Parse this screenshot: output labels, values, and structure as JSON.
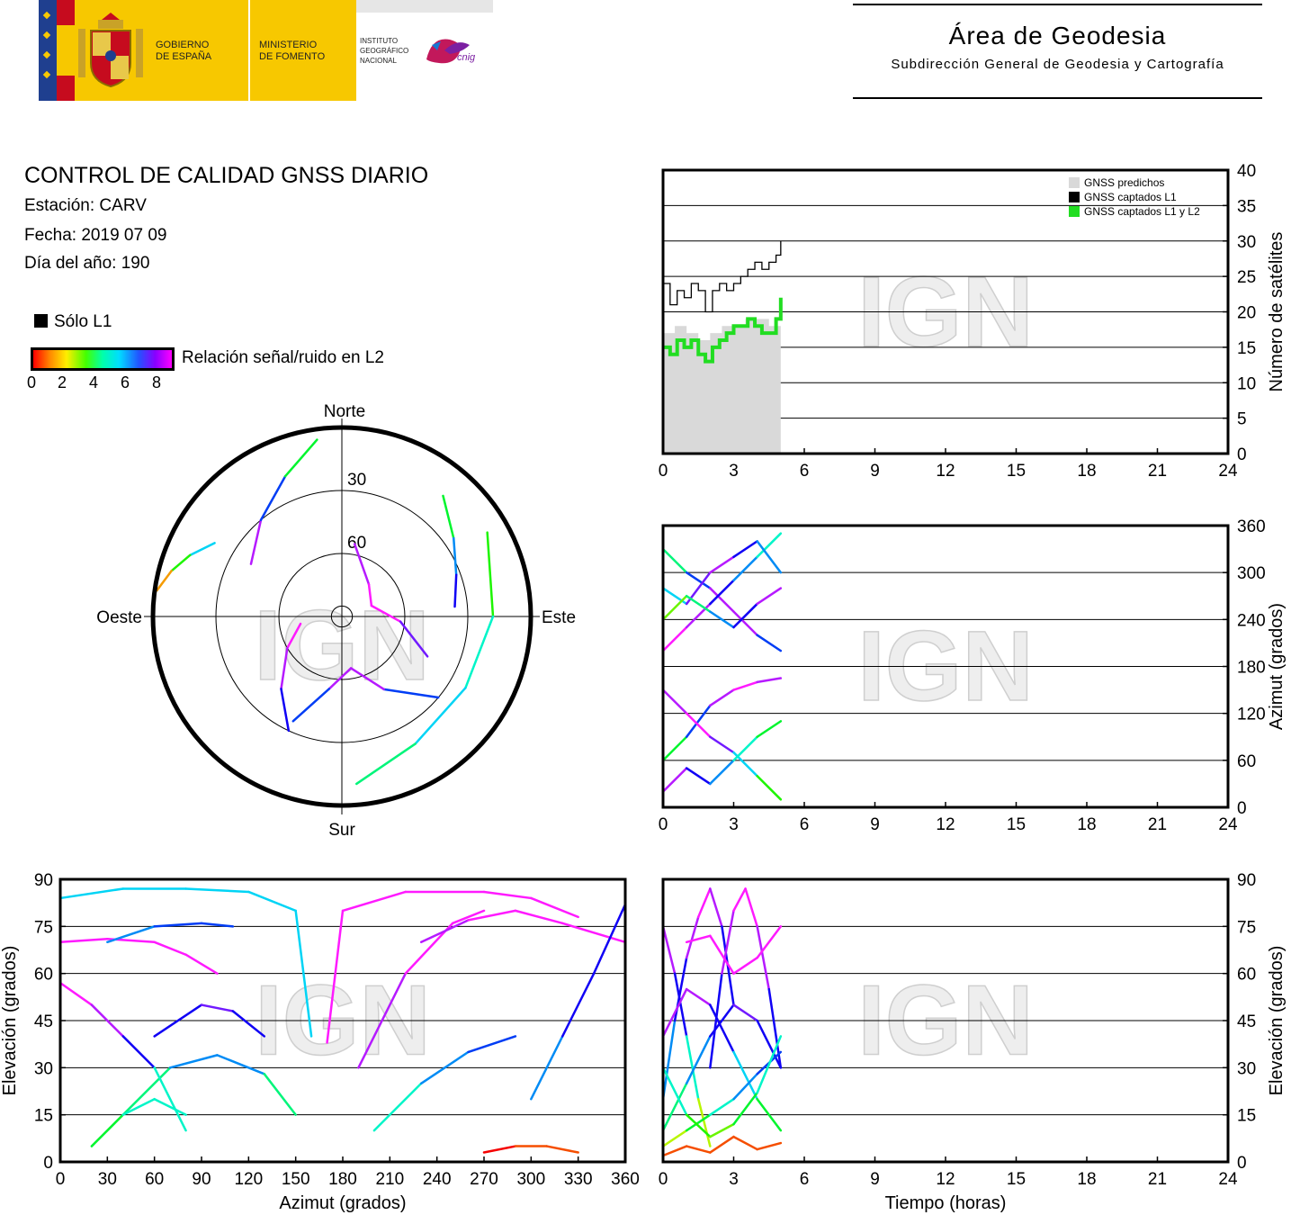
{
  "header": {
    "gov_line1": "GOBIERNO",
    "gov_line2": "DE ESPAÑA",
    "ministry_line1": "MINISTERIO",
    "ministry_line2": "DE FOMENTO",
    "ign_line1": "INSTITUTO",
    "ign_line2": "GEOGRÁFICO",
    "ign_line3": "NACIONAL",
    "cnig": "cnig",
    "area_title": "Área de Geodesia",
    "area_subtitle": "Subdirección General de Geodesia y Cartografía",
    "colors": {
      "spain_yellow": "#f7c800",
      "spain_red": "#c60b1e",
      "eu_blue": "#1f3f8f"
    }
  },
  "info": {
    "title": "CONTROL DE CALIDAD GNSS DIARIO",
    "station": "Estación: CARV",
    "date": "Fecha: 2019 07 09",
    "doy": "Día del año: 190"
  },
  "legend": {
    "l1_only": "Sólo L1",
    "snr_label": "Relación señal/ruido en L2",
    "snr_ticks": [
      "0",
      "2",
      "4",
      "6",
      "8"
    ]
  },
  "watermark": "IGN",
  "chart_data": [
    {
      "id": "skyplot",
      "type": "scatter",
      "projection": "polar",
      "directions": {
        "north": "Norte",
        "south": "Sur",
        "east": "Este",
        "west": "Oeste"
      },
      "ring_labels": [
        "30",
        "60"
      ],
      "rings_elevation": [
        0,
        30,
        60,
        85
      ],
      "color_scale": "snr_L2_0_to_8",
      "tracks": [
        {
          "az": [
            300,
            320,
            338,
            352
          ],
          "el": [
            40,
            30,
            18,
            5
          ],
          "snr": [
            8,
            7,
            5,
            2
          ]
        },
        {
          "az": [
            260,
            240,
            220,
            205
          ],
          "el": [
            70,
            60,
            45,
            30
          ],
          "snr": [
            8,
            8,
            7,
            6
          ]
        },
        {
          "az": [
            10,
            40,
            70,
            95,
            115
          ],
          "el": [
            55,
            70,
            75,
            62,
            45
          ],
          "snr": [
            7,
            8,
            8,
            8,
            6
          ]
        },
        {
          "az": [
            130,
            150,
            170,
            190,
            205
          ],
          "el": [
            30,
            50,
            65,
            55,
            35
          ],
          "snr": [
            5,
            7,
            8,
            7,
            5
          ]
        },
        {
          "az": [
            40,
            55,
            70,
            85
          ],
          "el": [
            15,
            25,
            32,
            36
          ],
          "snr": [
            2,
            5,
            6,
            7
          ]
        },
        {
          "az": [
            300,
            292,
            285,
            278
          ],
          "el": [
            20,
            12,
            6,
            1
          ],
          "snr": [
            6,
            4,
            2,
            0
          ]
        },
        {
          "az": [
            60,
            90,
            120,
            150,
            175
          ],
          "el": [
            10,
            18,
            22,
            20,
            10
          ],
          "snr": [
            2,
            4,
            5,
            5,
            3
          ]
        }
      ]
    },
    {
      "id": "satellites-vs-time",
      "type": "area",
      "title": "",
      "xlabel": "",
      "ylabel": "Número de satélites",
      "xlim": [
        0,
        24
      ],
      "ylim": [
        0,
        40
      ],
      "xticks": [
        0,
        3,
        6,
        9,
        12,
        15,
        18,
        21,
        24
      ],
      "yticks": [
        0,
        5,
        10,
        15,
        20,
        25,
        30,
        35,
        40
      ],
      "grid": "horizontal",
      "legend_position": "top-right",
      "series": [
        {
          "name": "GNSS predichos",
          "color": "#d9d9d9",
          "x": [
            0,
            0.5,
            1,
            1.5,
            2,
            2.5,
            3,
            3.5,
            4,
            4.5,
            5
          ],
          "values": [
            17,
            18,
            17,
            16,
            17,
            18,
            18,
            19,
            19,
            18,
            22
          ]
        },
        {
          "name": "GNSS captados L1",
          "color": "#000000",
          "x": [
            0,
            0.3,
            0.6,
            0.9,
            1.2,
            1.5,
            1.8,
            2.1,
            2.4,
            2.7,
            3.0,
            3.3,
            3.6,
            3.9,
            4.2,
            4.5,
            4.8,
            5.0
          ],
          "values": [
            24,
            21,
            23,
            22,
            24,
            23,
            20,
            23,
            24,
            23,
            24,
            25,
            26,
            27,
            26,
            27,
            28,
            30
          ]
        },
        {
          "name": "GNSS captados L1 y L2",
          "color": "#22dd22",
          "x": [
            0,
            0.3,
            0.6,
            0.9,
            1.2,
            1.5,
            1.8,
            2.1,
            2.4,
            2.7,
            3.0,
            3.3,
            3.6,
            3.9,
            4.2,
            4.5,
            4.8,
            5.0
          ],
          "values": [
            15,
            14,
            16,
            15,
            16,
            14,
            13,
            15,
            16,
            17,
            18,
            18,
            19,
            18,
            17,
            17,
            19,
            22
          ]
        }
      ]
    },
    {
      "id": "azimuth-vs-time",
      "type": "scatter",
      "xlabel": "",
      "ylabel": "Azimut (grados)",
      "xlim": [
        0,
        24
      ],
      "ylim": [
        0,
        360
      ],
      "xticks": [
        0,
        3,
        6,
        9,
        12,
        15,
        18,
        21,
        24
      ],
      "yticks": [
        0,
        60,
        120,
        180,
        240,
        300,
        360
      ],
      "grid": "horizontal",
      "color_scale": "snr_L2_0_to_8",
      "tracks": [
        {
          "x": [
            0,
            1,
            2,
            3,
            4,
            5
          ],
          "y": [
            330,
            300,
            280,
            250,
            220,
            200
          ],
          "snr": [
            3,
            5,
            7,
            8,
            7,
            5
          ]
        },
        {
          "x": [
            0,
            1,
            2,
            3,
            4,
            5
          ],
          "y": [
            200,
            230,
            260,
            290,
            320,
            350
          ],
          "snr": [
            8,
            8,
            7,
            6,
            5,
            4
          ]
        },
        {
          "x": [
            0,
            1,
            2,
            3,
            4,
            5
          ],
          "y": [
            60,
            90,
            130,
            150,
            160,
            165
          ],
          "snr": [
            2,
            5,
            7,
            8,
            8,
            7
          ]
        },
        {
          "x": [
            0,
            1,
            2,
            3,
            4,
            5
          ],
          "y": [
            150,
            120,
            90,
            70,
            40,
            10
          ],
          "snr": [
            7,
            8,
            8,
            6,
            4,
            2
          ]
        },
        {
          "x": [
            0,
            1,
            2,
            3,
            4,
            5
          ],
          "y": [
            20,
            50,
            30,
            60,
            90,
            110
          ],
          "snr": [
            8,
            7,
            6,
            5,
            4,
            3
          ]
        },
        {
          "x": [
            0,
            1,
            2,
            3,
            4,
            5
          ],
          "y": [
            280,
            260,
            300,
            320,
            340,
            300
          ],
          "snr": [
            4,
            6,
            8,
            7,
            6,
            5
          ]
        },
        {
          "x": [
            0,
            1,
            2,
            3,
            4,
            5
          ],
          "y": [
            240,
            270,
            250,
            230,
            260,
            280
          ],
          "snr": [
            2,
            3,
            5,
            6,
            7,
            8
          ]
        }
      ]
    },
    {
      "id": "elevation-vs-azimuth",
      "type": "scatter",
      "xlabel": "Azimut (grados)",
      "ylabel": "Elevación (grados)",
      "xlim": [
        0,
        360
      ],
      "ylim": [
        0,
        90
      ],
      "xticks": [
        0,
        30,
        60,
        90,
        120,
        150,
        180,
        210,
        240,
        270,
        300,
        330,
        360
      ],
      "yticks": [
        0,
        15,
        30,
        45,
        60,
        75,
        90
      ],
      "grid": "horizontal",
      "color_scale": "snr_L2_0_to_8",
      "tracks": [
        {
          "x": [
            0,
            40,
            80,
            120,
            150,
            160
          ],
          "y": [
            84,
            87,
            87,
            86,
            80,
            40
          ],
          "snr": [
            5,
            5,
            5,
            5,
            5,
            5
          ]
        },
        {
          "x": [
            170,
            180,
            220,
            270,
            300,
            330
          ],
          "y": [
            38,
            80,
            86,
            86,
            84,
            78
          ],
          "snr": [
            8,
            8,
            8,
            8,
            8,
            8
          ]
        },
        {
          "x": [
            0,
            30,
            60,
            80,
            100
          ],
          "y": [
            70,
            71,
            70,
            66,
            60
          ],
          "snr": [
            8,
            8,
            8,
            8,
            8
          ]
        },
        {
          "x": [
            30,
            60,
            90,
            110
          ],
          "y": [
            70,
            75,
            76,
            75
          ],
          "snr": [
            5,
            6,
            6,
            6
          ]
        },
        {
          "x": [
            60,
            90,
            110,
            130
          ],
          "y": [
            40,
            50,
            48,
            40
          ],
          "snr": [
            6,
            7,
            7,
            6
          ]
        },
        {
          "x": [
            40,
            70,
            100,
            130,
            150
          ],
          "y": [
            15,
            30,
            34,
            28,
            15
          ],
          "snr": [
            3,
            5,
            6,
            5,
            3
          ]
        },
        {
          "x": [
            190,
            220,
            250,
            270
          ],
          "y": [
            30,
            60,
            76,
            80
          ],
          "snr": [
            7,
            8,
            8,
            8
          ]
        },
        {
          "x": [
            230,
            260,
            290,
            320,
            360
          ],
          "y": [
            70,
            77,
            80,
            76,
            70
          ],
          "snr": [
            7,
            8,
            8,
            8,
            8
          ]
        },
        {
          "x": [
            200,
            230,
            260,
            290
          ],
          "y": [
            10,
            25,
            35,
            40
          ],
          "snr": [
            4,
            5,
            6,
            6
          ]
        },
        {
          "x": [
            270,
            290,
            310,
            330
          ],
          "y": [
            3,
            5,
            5,
            3
          ],
          "snr": [
            0,
            0,
            1,
            0
          ]
        },
        {
          "x": [
            0,
            20,
            40,
            60,
            80
          ],
          "y": [
            57,
            50,
            40,
            30,
            10
          ],
          "snr": [
            8,
            8,
            7,
            6,
            3
          ]
        },
        {
          "x": [
            300,
            320,
            340,
            360
          ],
          "y": [
            20,
            40,
            60,
            82
          ],
          "snr": [
            5,
            6,
            7,
            6
          ]
        },
        {
          "x": [
            20,
            40,
            60,
            80
          ],
          "y": [
            5,
            15,
            20,
            15
          ],
          "snr": [
            3,
            4,
            5,
            4
          ]
        }
      ]
    },
    {
      "id": "elevation-vs-time",
      "type": "scatter",
      "xlabel": "Tiempo (horas)",
      "ylabel": "Elevación (grados)",
      "xlim": [
        0,
        24
      ],
      "ylim": [
        0,
        90
      ],
      "xticks": [
        0,
        3,
        6,
        9,
        12,
        15,
        18,
        21,
        24
      ],
      "yticks": [
        0,
        15,
        30,
        45,
        60,
        75,
        90
      ],
      "grid": "horizontal",
      "color_scale": "snr_L2_0_to_8",
      "tracks": [
        {
          "x": [
            0,
            0.5,
            1,
            1.5,
            2,
            2.5,
            3
          ],
          "y": [
            20,
            45,
            65,
            78,
            87,
            75,
            50
          ],
          "snr": [
            5,
            6,
            7,
            8,
            8,
            7,
            6
          ]
        },
        {
          "x": [
            2,
            2.5,
            3,
            3.5,
            4,
            4.5,
            5
          ],
          "y": [
            30,
            60,
            80,
            87,
            75,
            55,
            30
          ],
          "snr": [
            6,
            7,
            8,
            8,
            8,
            7,
            6
          ]
        },
        {
          "x": [
            0,
            0.5,
            1,
            1.5,
            2
          ],
          "y": [
            75,
            60,
            40,
            20,
            5
          ],
          "snr": [
            8,
            7,
            6,
            3,
            1
          ]
        },
        {
          "x": [
            0,
            1,
            2,
            3,
            4,
            5
          ],
          "y": [
            10,
            25,
            40,
            50,
            45,
            30
          ],
          "snr": [
            3,
            5,
            6,
            7,
            7,
            6
          ]
        },
        {
          "x": [
            0,
            1,
            2,
            3,
            4,
            5
          ],
          "y": [
            40,
            55,
            50,
            35,
            20,
            10
          ],
          "snr": [
            7,
            8,
            7,
            6,
            4,
            3
          ]
        },
        {
          "x": [
            0,
            1,
            2,
            3,
            4,
            5
          ],
          "y": [
            5,
            10,
            15,
            20,
            28,
            35
          ],
          "snr": [
            1,
            3,
            4,
            5,
            6,
            6
          ]
        },
        {
          "x": [
            1,
            2,
            3,
            4,
            5
          ],
          "y": [
            70,
            72,
            60,
            65,
            75
          ],
          "snr": [
            8,
            8,
            8,
            8,
            8
          ]
        },
        {
          "x": [
            0,
            1,
            2,
            3,
            4,
            5
          ],
          "y": [
            30,
            15,
            8,
            12,
            22,
            40
          ],
          "snr": [
            5,
            4,
            2,
            3,
            4,
            5
          ]
        },
        {
          "x": [
            0,
            1,
            2,
            3,
            4,
            5
          ],
          "y": [
            2,
            5,
            3,
            8,
            4,
            6
          ],
          "snr": [
            0,
            1,
            0,
            1,
            0,
            1
          ]
        }
      ]
    }
  ]
}
